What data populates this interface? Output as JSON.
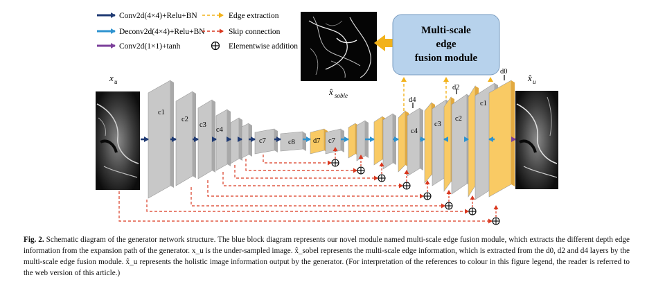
{
  "legend": {
    "conv": "Conv2d(4×4)+Relu+BN",
    "deconv": "Deconv2d(4×4)+Relu+BN",
    "conv1x1": "Conv2d(1×1)+tanh",
    "edge_extraction": "Edge extraction",
    "skip_connection": "Skip connection",
    "elementwise_addition": "Elementwise addition"
  },
  "module": {
    "line1": "Multi-scale",
    "line2": "edge",
    "line3": "fusion module"
  },
  "labels": {
    "input_var": "x",
    "input_sub": "u",
    "output_var": "x̂",
    "output_sub": "u",
    "sobel_var": "x̂",
    "sobel_sub": "soble"
  },
  "encoder_blocks": [
    "c1",
    "c2",
    "c3",
    "c4",
    "c7",
    "c8"
  ],
  "decoder_blocks": [
    "d7",
    "c7",
    "c4",
    "c3",
    "c2",
    "c1"
  ],
  "tap_labels": [
    "d4",
    "d2",
    "d0"
  ],
  "colors": {
    "conv_arrow": "#1f3a73",
    "deconv_arrow": "#2e93d0",
    "conv1x1_arrow": "#7b3f9a",
    "edge_arrow": "#f2b21b",
    "skip_arrow": "#d9371e",
    "module_fill": "#b7d2ec",
    "gray_block": "#c8c8c8",
    "yellow_block": "#f9ca64"
  },
  "caption": {
    "label": "Fig. 2.",
    "text": "Schematic diagram of the generator network structure. The blue block diagram represents our novel module named multi-scale edge fusion module, which extracts the different depth edge information from the expansion path of the generator. x_u is the under-sampled image. x̂_sobel represents the multi-scale edge information, which is extracted from the d0, d2 and d4 layers by the multi-scale edge fusion module. x̂_u represents the holistic image information output by the generator. (For interpretation of the references to colour in this figure legend, the reader is referred to the web version of this article.)"
  }
}
